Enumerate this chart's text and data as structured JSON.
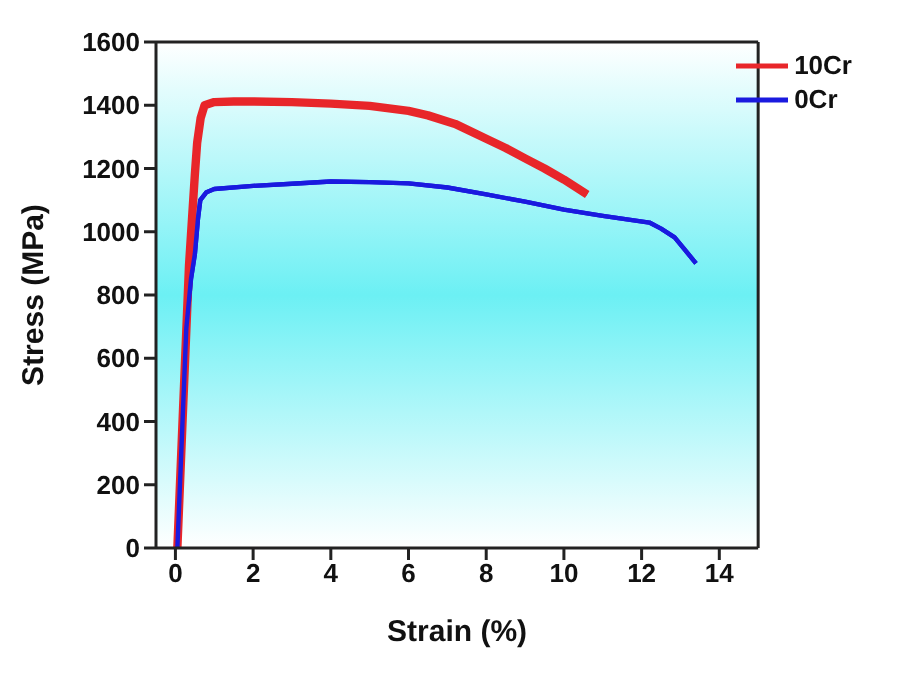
{
  "chart_data": {
    "type": "line",
    "xlabel": "Strain (%)",
    "ylabel": "Stress (MPa)",
    "xlim": [
      -0.5,
      15
    ],
    "xticks": [
      0,
      2,
      4,
      6,
      8,
      10,
      12,
      14
    ],
    "ylim": [
      0,
      1600
    ],
    "yticks": [
      0,
      200,
      400,
      600,
      800,
      1000,
      1200,
      1400,
      1600
    ],
    "grid": false,
    "legend": "top right",
    "marker": "none",
    "line_style": "solid",
    "series": [
      {
        "name": "10Cr",
        "color": "#e8262a",
        "x": [
          0.05,
          0.2,
          0.35,
          0.5,
          0.56,
          0.65,
          0.75,
          1,
          1.5,
          2,
          3,
          4,
          5,
          6,
          6.5,
          7.2,
          8,
          8.5,
          9,
          9.5,
          10,
          10.6
        ],
        "values": [
          0,
          450,
          894,
          1180,
          1282,
          1360,
          1400,
          1410,
          1412,
          1412,
          1410,
          1405,
          1398,
          1382,
          1368,
          1341,
          1294,
          1265,
          1232,
          1200,
          1165,
          1118
        ]
      },
      {
        "name": "0Cr",
        "color": "#1a1adf",
        "x": [
          0.05,
          0.15,
          0.28,
          0.4,
          0.5,
          0.58,
          0.64,
          0.8,
          1,
          2,
          3,
          4,
          5,
          6,
          7,
          8,
          9,
          10,
          11,
          12.2,
          12.5,
          12.85,
          13.1,
          13.4
        ],
        "values": [
          0,
          300,
          694,
          850,
          929,
          1040,
          1100,
          1125,
          1135,
          1145,
          1152,
          1159,
          1157,
          1153,
          1140,
          1118,
          1095,
          1070,
          1050,
          1029,
          1010,
          982,
          945,
          900
        ]
      }
    ]
  }
}
